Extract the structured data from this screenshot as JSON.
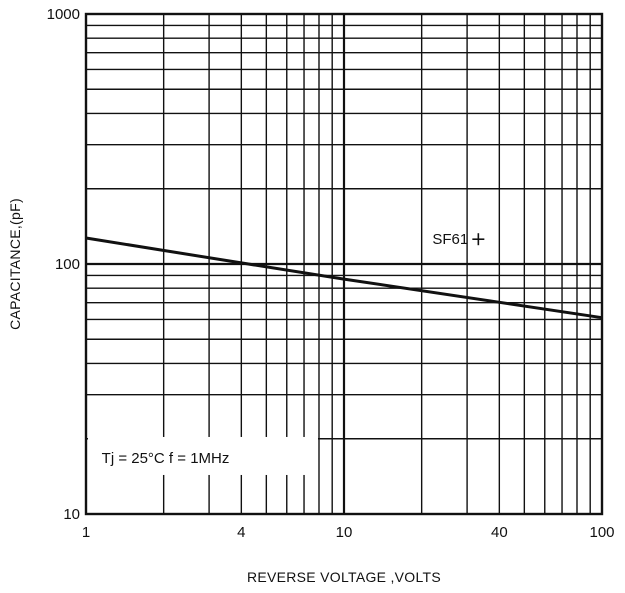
{
  "chart_data": {
    "type": "line",
    "title": "",
    "xlabel": "REVERSE VOLTAGE ,VOLTS",
    "ylabel": "CAPACITANCE,(pF)",
    "x_scale": "log",
    "y_scale": "log",
    "xlim": [
      1,
      100
    ],
    "ylim": [
      10,
      1000
    ],
    "grid": true,
    "x_tick_labels": [
      {
        "value": 1,
        "label": "1"
      },
      {
        "value": 4,
        "label": "4"
      },
      {
        "value": 10,
        "label": "10"
      },
      {
        "value": 40,
        "label": "40"
      },
      {
        "value": 100,
        "label": "100"
      }
    ],
    "y_tick_labels": [
      {
        "value": 10,
        "label": "10"
      },
      {
        "value": 100,
        "label": "100"
      },
      {
        "value": 1000,
        "label": "1000"
      }
    ],
    "series": [
      {
        "name": "SF61",
        "color": "#111111",
        "x": [
          1,
          4,
          10,
          100
        ],
        "y": [
          127,
          101,
          87,
          61
        ]
      }
    ],
    "annotations": [
      {
        "id": "series-label",
        "text": "SF61",
        "x": 22,
        "y": 120
      },
      {
        "id": "conditions",
        "text": "Tj = 25°C   f = 1MHz",
        "x": 1.15,
        "y": 16
      }
    ]
  }
}
